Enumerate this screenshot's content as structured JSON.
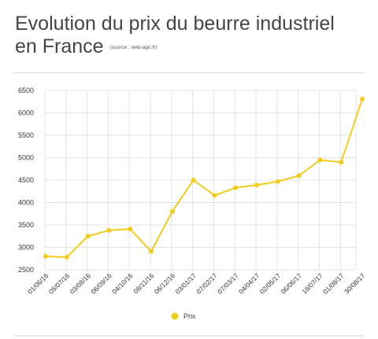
{
  "title": {
    "line1": "Evolution du prix du beurre industriel",
    "line2": "en France",
    "source": "(source : web-agri.fr)"
  },
  "colors": {
    "series": "#f2cc1a",
    "grid": "#e3e3e3",
    "text": "#444444"
  },
  "chart_data": {
    "type": "line",
    "title": "Evolution du prix du beurre industriel en France",
    "subtitle": "(source : web-agri.fr)",
    "xlabel": "",
    "ylabel": "",
    "categories": [
      "01/06/16",
      "05/07/16",
      "03/08/16",
      "06/09/16",
      "04/10/16",
      "08/11/16",
      "06/12/16",
      "03/01/17",
      "07/02/17",
      "07/03/17",
      "04/04/17",
      "02/05/17",
      "06/06/17",
      "18/07/17",
      "01/08/17",
      "30/08/17"
    ],
    "series": [
      {
        "name": "Prix",
        "values": [
          2800,
          2780,
          3250,
          3380,
          3410,
          2910,
          3800,
          4500,
          4160,
          4330,
          4390,
          4470,
          4600,
          4950,
          4900,
          6310
        ]
      }
    ],
    "ylim": [
      2500,
      6500
    ],
    "yticks": [
      2500,
      3000,
      3500,
      4000,
      4500,
      5000,
      5500,
      6000,
      6500
    ],
    "grid": true,
    "legend": "bottom-center"
  }
}
